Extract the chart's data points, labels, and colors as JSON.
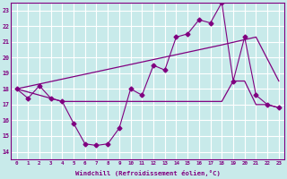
{
  "background_color": "#c8eaea",
  "grid_color": "#ffffff",
  "line_color": "#800080",
  "x_ticks": [
    0,
    1,
    2,
    3,
    4,
    5,
    6,
    7,
    8,
    9,
    10,
    11,
    12,
    13,
    14,
    15,
    16,
    17,
    18,
    19,
    20,
    21,
    22,
    23
  ],
  "y_ticks": [
    14,
    15,
    16,
    17,
    18,
    19,
    20,
    21,
    22,
    23
  ],
  "xlabel": "Windchill (Refroidissement éolien,°C)",
  "ylim": [
    13.5,
    23.5
  ],
  "xlim": [
    -0.5,
    23.5
  ],
  "line1_diamonds": {
    "x": [
      0,
      1,
      2,
      3,
      4,
      5,
      6,
      7,
      8,
      9,
      10,
      11,
      12,
      13,
      14,
      15,
      16,
      17,
      18,
      19,
      20,
      21,
      22,
      23
    ],
    "y": [
      18.0,
      17.4,
      18.2,
      17.4,
      17.2,
      15.8,
      14.5,
      14.4,
      14.5,
      15.5,
      18.0,
      17.6,
      19.5,
      19.2,
      21.3,
      21.5,
      22.4,
      22.2,
      23.5,
      18.5,
      21.3,
      17.6,
      17.0,
      16.8
    ]
  },
  "line2_diagonal": {
    "x": [
      0,
      18,
      21,
      23
    ],
    "y": [
      18.0,
      20.8,
      21.3,
      18.5
    ]
  },
  "line3_flat": {
    "x": [
      0,
      4,
      10,
      18,
      19,
      20,
      21,
      22,
      23
    ],
    "y": [
      18.0,
      17.2,
      17.2,
      17.2,
      18.5,
      18.5,
      17.0,
      17.0,
      16.8
    ]
  },
  "marker": "D",
  "markersize": 2.5
}
